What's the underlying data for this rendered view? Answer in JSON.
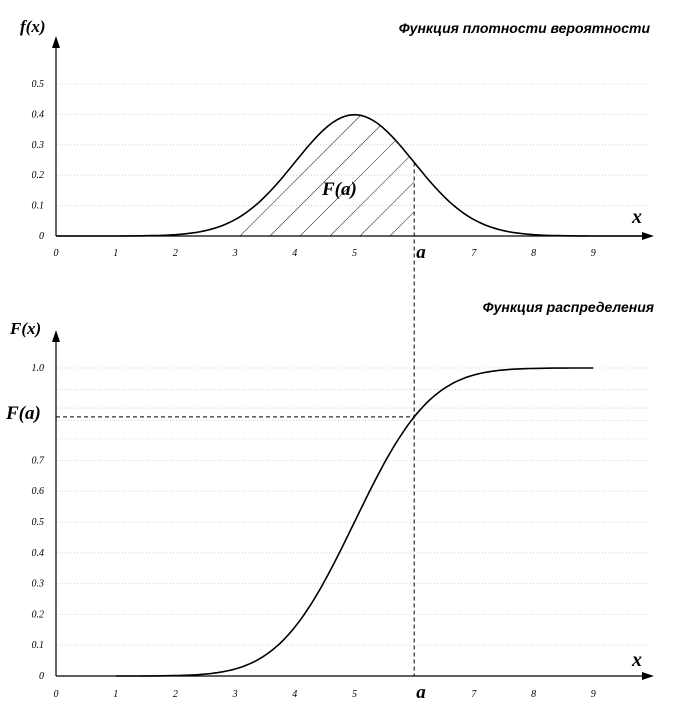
{
  "chart_data": [
    {
      "type": "line",
      "title": "Функция плотности вероятности",
      "ylabel": "f(x)",
      "xlabel": "x",
      "x_ticks": [
        "0",
        "1",
        "2",
        "3",
        "4",
        "5",
        "6",
        "7",
        "8",
        "9"
      ],
      "y_ticks": [
        "0",
        "0.1",
        "0.2",
        "0.3",
        "0.4",
        "0.5"
      ],
      "xlim": [
        0,
        10
      ],
      "ylim": [
        0,
        0.55
      ],
      "grid": true,
      "series": [
        {
          "x": [
            1,
            1.5,
            2,
            2.5,
            3,
            3.5,
            4,
            4.5,
            5,
            5.5,
            6,
            6.5,
            7,
            7.5,
            8,
            8.5,
            9
          ],
          "y": [
            0.0001,
            0.0009,
            0.004,
            0.018,
            0.054,
            0.13,
            0.242,
            0.352,
            0.399,
            0.352,
            0.242,
            0.13,
            0.054,
            0.018,
            0.004,
            0.0009,
            0.0001
          ]
        }
      ],
      "shaded_region": {
        "from": 3,
        "to": 6,
        "label": "F(a)"
      },
      "marker": {
        "x": 6,
        "label": "a"
      },
      "color": "#000000"
    },
    {
      "type": "line",
      "title": "Функция распределения",
      "ylabel": "F(x)",
      "xlabel": "x",
      "x_ticks": [
        "0",
        "1",
        "2",
        "3",
        "4",
        "5",
        "6",
        "7",
        "8",
        "9"
      ],
      "y_ticks": [
        "0",
        "0.1",
        "0.2",
        "0.3",
        "0.4",
        "0.5",
        "0.6",
        "0.7",
        "1.0"
      ],
      "xlim": [
        0,
        10
      ],
      "ylim": [
        0,
        1.05
      ],
      "grid": true,
      "series": [
        {
          "x": [
            1,
            1.5,
            2,
            2.5,
            3,
            3.5,
            4,
            4.5,
            5,
            5.5,
            6,
            6.5,
            7,
            7.5,
            8,
            8.5,
            9
          ],
          "y": [
            0.0,
            0.0002,
            0.0013,
            0.0062,
            0.0228,
            0.0668,
            0.1587,
            0.3085,
            0.5,
            0.6915,
            0.8413,
            0.9332,
            0.9772,
            0.9938,
            0.9987,
            0.9998,
            1.0
          ]
        }
      ],
      "marker": {
        "x": 6,
        "label": "a",
        "y_label": "F(a)"
      },
      "color": "#000000"
    }
  ]
}
